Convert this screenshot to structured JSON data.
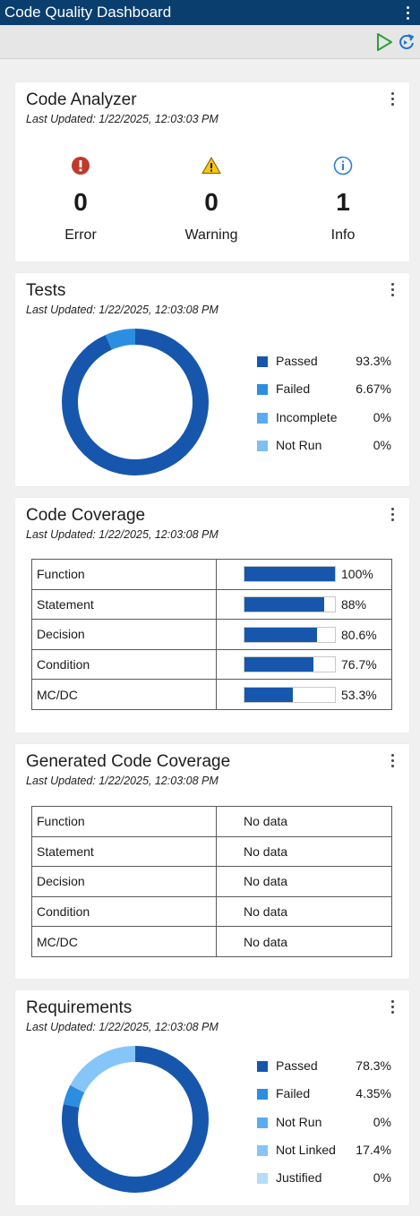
{
  "app": {
    "title": "Code Quality Dashboard"
  },
  "toolbar": {
    "run_icon": "play-icon",
    "refresh_icon": "refresh-icon"
  },
  "colors": {
    "title_bar": "#0a3e6e",
    "passed": "#1657ad",
    "failed": "#2c8ee0",
    "incomplete": "#5aacf0",
    "not_run": "#7cc0f5",
    "not_linked": "#86c5f7",
    "justified": "#b5dcfb",
    "error": "#c0392b",
    "warning": "#e0a800",
    "info": "#2a7fd4"
  },
  "code_analyzer": {
    "title": "Code Analyzer",
    "last_updated": "Last Updated: 1/22/2025, 12:03:03 PM",
    "metrics": [
      {
        "icon": "error-icon",
        "count": "0",
        "label": "Error"
      },
      {
        "icon": "warning-icon",
        "count": "0",
        "label": "Warning"
      },
      {
        "icon": "info-icon",
        "count": "1",
        "label": "Info"
      }
    ]
  },
  "tests": {
    "title": "Tests",
    "last_updated": "Last Updated: 1/22/2025, 12:03:08 PM",
    "legend": [
      {
        "name": "Passed",
        "value": "93.3%",
        "fraction": 0.933,
        "color": "#1657ad"
      },
      {
        "name": "Failed",
        "value": "6.67%",
        "fraction": 0.0667,
        "color": "#2c8ee0"
      },
      {
        "name": "Incomplete",
        "value": "0%",
        "fraction": 0,
        "color": "#5aacf0"
      },
      {
        "name": "Not Run",
        "value": "0%",
        "fraction": 0,
        "color": "#7cc0f5"
      }
    ]
  },
  "code_coverage": {
    "title": "Code Coverage",
    "last_updated": "Last Updated: 1/22/2025, 12:03:08 PM",
    "rows": [
      {
        "metric": "Function",
        "value": "100%",
        "fraction": 1.0
      },
      {
        "metric": "Statement",
        "value": "88%",
        "fraction": 0.88
      },
      {
        "metric": "Decision",
        "value": "80.6%",
        "fraction": 0.806
      },
      {
        "metric": "Condition",
        "value": "76.7%",
        "fraction": 0.767
      },
      {
        "metric": "MC/DC",
        "value": "53.3%",
        "fraction": 0.533
      }
    ]
  },
  "generated_code_coverage": {
    "title": "Generated Code Coverage",
    "last_updated": "Last Updated: 1/22/2025, 12:03:08 PM",
    "rows": [
      {
        "metric": "Function",
        "value": "No data"
      },
      {
        "metric": "Statement",
        "value": "No data"
      },
      {
        "metric": "Decision",
        "value": "No data"
      },
      {
        "metric": "Condition",
        "value": "No data"
      },
      {
        "metric": "MC/DC",
        "value": "No data"
      }
    ]
  },
  "requirements": {
    "title": "Requirements",
    "last_updated": "Last Updated: 1/22/2025, 12:03:08 PM",
    "legend": [
      {
        "name": "Passed",
        "value": "78.3%",
        "fraction": 0.783,
        "color": "#1657ad"
      },
      {
        "name": "Failed",
        "value": "4.35%",
        "fraction": 0.0435,
        "color": "#2c8ee0"
      },
      {
        "name": "Not Run",
        "value": "0%",
        "fraction": 0,
        "color": "#5aacf0"
      },
      {
        "name": "Not Linked",
        "value": "17.4%",
        "fraction": 0.174,
        "color": "#86c5f7"
      },
      {
        "name": "Justified",
        "value": "0%",
        "fraction": 0,
        "color": "#b5dcfb"
      }
    ]
  }
}
